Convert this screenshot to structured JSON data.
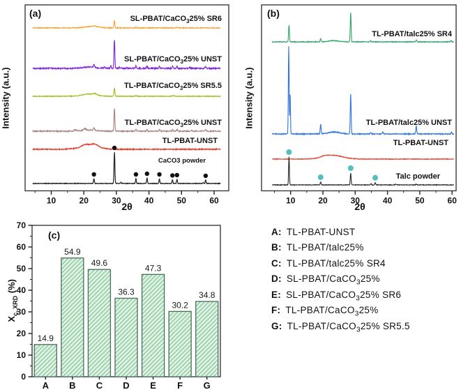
{
  "figure": {
    "panel_a": {
      "letter": "(a)",
      "y_axis_label": "Intensity (a.u.)",
      "x_axis_label": "2θ",
      "curve_labels": [
        {
          "pre": "SL-PBAT/CaCO",
          "sub": "3",
          "post": "25% SR6"
        },
        {
          "pre": "SL-PBAT/CaCO",
          "sub": "3",
          "post": "25% UNST"
        },
        {
          "pre": "TL-PBAT/CaCO",
          "sub": "3",
          "post": "25% SR5.5"
        },
        {
          "pre": "TL-PBAT/CaCO",
          "sub": "3",
          "post": "25% UNST"
        },
        {
          "pre": "TL-PBAT-UNST",
          "sub": "",
          "post": ""
        },
        {
          "pre": "CaCO3 powder",
          "sub": "",
          "post": ""
        }
      ]
    },
    "panel_b": {
      "letter": "(b)",
      "y_axis_label": "Intensity (a.u.)",
      "x_axis_label": "2θ",
      "curve_labels": [
        {
          "pre": "TL-PBAT/talc25% SR4",
          "sub": "",
          "post": ""
        },
        {
          "pre": "TL-PBAT/talc25% UNST",
          "sub": "",
          "post": ""
        },
        {
          "pre": "TL-PBAT-UNST",
          "sub": "",
          "post": ""
        },
        {
          "pre": "Talc powder",
          "sub": "",
          "post": ""
        }
      ]
    },
    "panel_c": {
      "letter": "(c)",
      "y_axis_label": {
        "pre": "X",
        "sub": "c, XRD",
        "post": " (%)"
      }
    },
    "legend": {
      "items": [
        {
          "key": "A:",
          "pre": "TL-PBAT-UNST",
          "sub": "",
          "post": ""
        },
        {
          "key": "B:",
          "pre": "TL-PBAT/talc25%",
          "sub": "",
          "post": ""
        },
        {
          "key": "C:",
          "pre": "TL-PBAT/talc25% SR4",
          "sub": "",
          "post": ""
        },
        {
          "key": "D:",
          "pre": "SL-PBAT/CaCO",
          "sub": "3",
          "post": "25%"
        },
        {
          "key": "E:",
          "pre": "SL-PBAT/CaCO",
          "sub": "3",
          "post": "25% SR6"
        },
        {
          "key": "F:",
          "pre": "TL-PBAT/CaCO",
          "sub": "3",
          "post": "25%"
        },
        {
          "key": "G:",
          "pre": "TL-PBAT/CaCO",
          "sub": "3",
          "post": "25% SR5.5"
        }
      ]
    }
  },
  "chart_data": [
    {
      "panel": "a",
      "type": "line",
      "title": "(a)",
      "xlabel": "2θ",
      "ylabel": "Intensity (a.u.)",
      "xlim": [
        4,
        62
      ],
      "x_ticks": [
        "10",
        "20",
        "30",
        "40",
        "50",
        "60"
      ],
      "x_minor": [
        5,
        15,
        25,
        35,
        45,
        55
      ],
      "series": [
        {
          "id": "sl-pbat-caco3-25-sr6",
          "name": "SL-PBAT/CaCO3 25% SR6",
          "color": "#ff9f2e",
          "base": 40,
          "noise": 0.55,
          "seed": 1,
          "peaks": [
            [
              22.5,
              2.2,
              2.0
            ],
            [
              23.3,
              1.2,
              0.3
            ],
            [
              29.4,
              11,
              0.14
            ],
            [
              36,
              1,
              0.15
            ],
            [
              48.5,
              0.8,
              0.2
            ]
          ]
        },
        {
          "id": "sl-pbat-caco3-25-unst",
          "name": "SL-PBAT/CaCO3 25% UNST",
          "color": "#7d22dd",
          "base": 98,
          "noise": 0.95,
          "seed": 2,
          "peaks": [
            [
              21.5,
              1.8,
              2.2
            ],
            [
              23.1,
              4,
              0.15
            ],
            [
              26.3,
              1.5,
              0.2
            ],
            [
              28.3,
              4.5,
              0.12
            ],
            [
              29.4,
              41,
              0.13
            ],
            [
              30.9,
              2.2,
              0.12
            ],
            [
              33.2,
              1.2,
              0.15
            ],
            [
              36,
              3.2,
              0.14
            ],
            [
              39.4,
              3.2,
              0.14
            ],
            [
              43.2,
              2.8,
              0.14
            ],
            [
              47.3,
              3.2,
              0.14
            ],
            [
              48.6,
              3.2,
              0.14
            ],
            [
              52.5,
              1.2,
              0.2
            ],
            [
              57.4,
              2.8,
              0.15
            ]
          ]
        },
        {
          "id": "tl-pbat-caco3-25-sr5.5",
          "name": "TL-PBAT/CaCO3 25% SR5.5",
          "color": "#a5bd1d",
          "base": 138,
          "noise": 0.55,
          "seed": 3,
          "peaks": [
            [
              21.7,
              3.2,
              2.2
            ],
            [
              23.4,
              1.5,
              0.5
            ],
            [
              29.4,
              12,
              0.14
            ],
            [
              36,
              0.8,
              0.2
            ],
            [
              47.5,
              0.8,
              0.3
            ]
          ]
        },
        {
          "id": "tl-pbat-caco3-25-unst",
          "name": "TL-PBAT/CaCO3 25% UNST",
          "color": "#a98080",
          "base": 188,
          "noise": 0.75,
          "seed": 4,
          "peaks": [
            [
              17.4,
              1.8,
              0.35
            ],
            [
              20.3,
              2.2,
              0.4
            ],
            [
              21.8,
              1.5,
              2.2
            ],
            [
              23.1,
              3.2,
              0.2
            ],
            [
              29.4,
              33,
              0.13
            ],
            [
              36,
              2.8,
              0.14
            ],
            [
              39.4,
              2.8,
              0.14
            ],
            [
              43.2,
              2.2,
              0.14
            ],
            [
              47.3,
              2.8,
              0.14
            ],
            [
              48.6,
              2.4,
              0.14
            ],
            [
              53,
              1,
              0.2
            ],
            [
              57.4,
              2.2,
              0.15
            ]
          ]
        },
        {
          "id": "tl-pbat-unst",
          "name": "TL-PBAT-UNST",
          "color": "#e23b2b",
          "base": 214,
          "noise": 0.7,
          "seed": 5,
          "peaks": [
            [
              21.8,
              5.5,
              2.8
            ],
            [
              20.4,
              2.2,
              0.8
            ],
            [
              23.3,
              2.8,
              1.0
            ]
          ]
        },
        {
          "id": "caco3-powder",
          "name": "CaCO3 powder",
          "color": "#262626",
          "width": 1.25,
          "base": 263,
          "noise": 0.45,
          "seed": 6,
          "peaks": [
            [
              23.1,
              7,
              0.14
            ],
            [
              29.4,
              45,
              0.13
            ],
            [
              31.4,
              1.8,
              0.13
            ],
            [
              36,
              7,
              0.13
            ],
            [
              39.4,
              8,
              0.13
            ],
            [
              43.2,
              7,
              0.13
            ],
            [
              47.2,
              5.5,
              0.12
            ],
            [
              48.6,
              6,
              0.12
            ],
            [
              56.6,
              1,
              0.15
            ],
            [
              57.4,
              5,
              0.13
            ]
          ],
          "markers": [
            23.1,
            29.4,
            36.0,
            39.4,
            43.2,
            47.2,
            48.6,
            57.4
          ],
          "marker_color": "#111111",
          "marker_r": 3.2,
          "marker_dy": 6
        }
      ]
    },
    {
      "panel": "b",
      "type": "line",
      "title": "(b)",
      "xlabel": "2θ",
      "ylabel": "Intensity (a.u.)",
      "xlim": [
        4,
        61
      ],
      "x_ticks": [
        "10",
        "20",
        "30",
        "40",
        "50",
        "60"
      ],
      "x_minor": [
        5,
        15,
        25,
        35,
        45,
        55
      ],
      "series": [
        {
          "id": "tl-pbat-talc25-sr4",
          "name": "TL-PBAT/talc25% SR4",
          "color": "#2fa364",
          "base": 60,
          "noise": 0.5,
          "seed": 7,
          "peaks": [
            [
              9.5,
              24,
              0.13
            ],
            [
              19.3,
              5,
              0.13
            ],
            [
              23.3,
              1.8,
              1.5
            ],
            [
              28.6,
              42,
              0.13
            ],
            [
              34.8,
              1.5,
              0.15
            ],
            [
              48.9,
              2.8,
              0.15
            ],
            [
              59.7,
              1.8,
              0.15
            ]
          ]
        },
        {
          "id": "tl-pbat-talc25-unst",
          "name": "TL-PBAT/talc25% UNST",
          "color": "#3478dc",
          "width": 1.15,
          "base": 192,
          "noise": 0.65,
          "seed": 8,
          "peaks": [
            [
              9.42,
              126,
              0.12
            ],
            [
              9.85,
              58,
              0.1
            ],
            [
              19.3,
              14,
              0.13
            ],
            [
              23.4,
              2.8,
              1.8
            ],
            [
              28.6,
              58,
              0.13
            ],
            [
              34.8,
              2.2,
              0.15
            ],
            [
              38.6,
              2.8,
              0.15
            ],
            [
              48.9,
              11,
              0.14
            ],
            [
              59.8,
              2.5,
              0.15
            ]
          ]
        },
        {
          "id": "tl-pbat-unst-b",
          "name": "TL-PBAT-UNST",
          "color": "#e23b2b",
          "base": 228,
          "noise": 0.45,
          "seed": 9,
          "peaks": [
            [
              23,
              5.5,
              3.0
            ],
            [
              20.5,
              1.2,
              1.0
            ]
          ]
        },
        {
          "id": "talc-powder",
          "name": "Talc powder",
          "color": "#262626",
          "base": 265,
          "noise": 0.45,
          "seed": 10,
          "peaks": [
            [
              9.5,
              40,
              0.12
            ],
            [
              19.3,
              4,
              0.13
            ],
            [
              28.6,
              17,
              0.13
            ],
            [
              34.9,
              1.8,
              0.13
            ],
            [
              36.2,
              3.2,
              0.13
            ],
            [
              42.5,
              1,
              0.15
            ],
            [
              48.9,
              1,
              0.15
            ]
          ],
          "markers": [
            9.5,
            19.3,
            28.6,
            36.2
          ],
          "marker_color": "#56bebe",
          "marker_r": 4,
          "marker_dy": 7
        }
      ]
    },
    {
      "panel": "c",
      "type": "bar",
      "title": "(c)",
      "categories": [
        "A",
        "B",
        "C",
        "D",
        "E",
        "F",
        "G"
      ],
      "values": [
        14.9,
        54.9,
        49.6,
        36.3,
        47.3,
        30.2,
        34.8
      ],
      "value_labels": [
        "14.9",
        "54.9",
        "49.6",
        "36.3",
        "47.3",
        "30.2",
        "34.8"
      ],
      "ylabel": "Xc, XRD (%)",
      "xlabel": "",
      "ylim": [
        0,
        70
      ],
      "y_ticks": [
        "0",
        "10",
        "20",
        "30",
        "40",
        "50",
        "60",
        "70"
      ],
      "y_minor": [
        5,
        15,
        25,
        35,
        45,
        55,
        65
      ],
      "bar_fill": "#e3f2e7",
      "bar_hatch": "#93cfa4",
      "bar_edge": "#4c6e5d",
      "grid": false,
      "legend_position": "none"
    }
  ]
}
